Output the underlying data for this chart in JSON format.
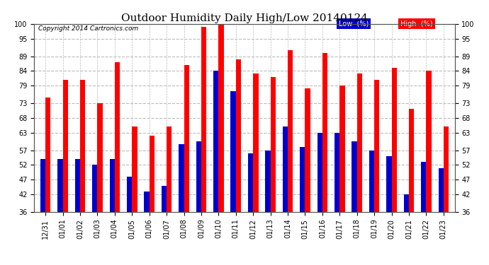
{
  "title": "Outdoor Humidity Daily High/Low 20140124",
  "copyright": "Copyright 2014 Cartronics.com",
  "labels": [
    "12/31",
    "01/01",
    "01/02",
    "01/03",
    "01/04",
    "01/05",
    "01/06",
    "01/07",
    "01/08",
    "01/09",
    "01/10",
    "01/11",
    "01/12",
    "01/13",
    "01/14",
    "01/15",
    "01/16",
    "01/17",
    "01/18",
    "01/19",
    "01/20",
    "01/21",
    "01/22",
    "01/23"
  ],
  "high": [
    75,
    81,
    81,
    73,
    87,
    65,
    62,
    65,
    86,
    99,
    100,
    88,
    83,
    82,
    91,
    78,
    90,
    79,
    83,
    81,
    85,
    71,
    84,
    65
  ],
  "low": [
    54,
    54,
    54,
    52,
    54,
    48,
    43,
    45,
    59,
    60,
    84,
    77,
    56,
    57,
    65,
    58,
    63,
    63,
    60,
    57,
    55,
    42,
    53,
    51
  ],
  "bar_color_high": "#ff0000",
  "bar_color_low": "#0000cc",
  "ylim_min": 36,
  "ylim_max": 100,
  "yticks": [
    36,
    42,
    47,
    52,
    57,
    63,
    68,
    73,
    79,
    84,
    89,
    95,
    100
  ],
  "legend_low_label": "Low  (%)",
  "legend_high_label": "High  (%)",
  "background_color": "#ffffff",
  "plot_bg_color": "#ffffff",
  "grid_color": "#bbbbbb",
  "title_fontsize": 11,
  "tick_fontsize": 7,
  "bar_width": 0.3
}
